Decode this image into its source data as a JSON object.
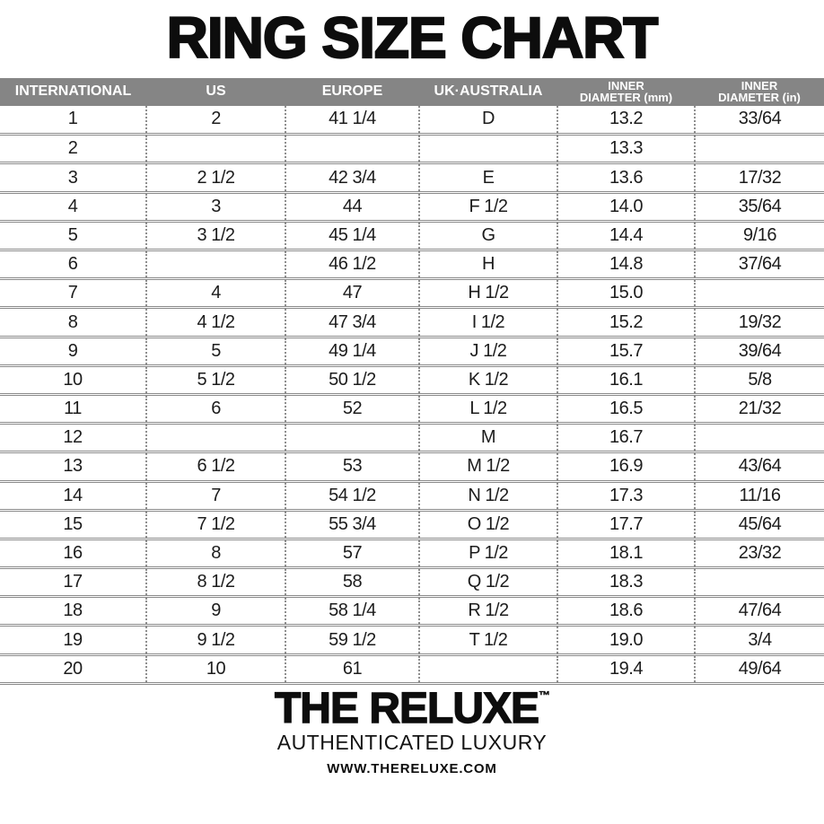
{
  "page": {
    "title": "RING SIZE CHART"
  },
  "colors": {
    "header_bg": "#858585",
    "header_text": "#ffffff",
    "separator_line": "#8a8a8a",
    "separator_dot": "#8f8f8f",
    "text": "#1c1c1c"
  },
  "table": {
    "columns": [
      {
        "line1": "INTERNATIONAL",
        "line2": ""
      },
      {
        "line1": "US",
        "line2": ""
      },
      {
        "line1": "EUROPE",
        "line2": ""
      },
      {
        "line1": "UK·AUSTRALIA",
        "line2": ""
      },
      {
        "line1": "INNER",
        "line2": "DIAMETER (mm)"
      },
      {
        "line1": "INNER",
        "line2": "DIAMETER (in)"
      }
    ],
    "rows": [
      [
        "1",
        "2",
        "41 1/4",
        "D",
        "13.2",
        "33/64"
      ],
      [
        "2",
        "",
        "",
        "",
        "13.3",
        ""
      ],
      [
        "3",
        "2 1/2",
        "42 3/4",
        "E",
        "13.6",
        "17/32"
      ],
      [
        "4",
        "3",
        "44",
        "F 1/2",
        "14.0",
        "35/64"
      ],
      [
        "5",
        "3 1/2",
        "45 1/4",
        "G",
        "14.4",
        "9/16"
      ],
      [
        "6",
        "",
        "46 1/2",
        "H",
        "14.8",
        "37/64"
      ],
      [
        "7",
        "4",
        "47",
        "H 1/2",
        "15.0",
        ""
      ],
      [
        "8",
        "4 1/2",
        "47 3/4",
        "I 1/2",
        "15.2",
        "19/32"
      ],
      [
        "9",
        "5",
        "49 1/4",
        "J 1/2",
        "15.7",
        "39/64"
      ],
      [
        "10",
        "5 1/2",
        "50 1/2",
        "K 1/2",
        "16.1",
        "5/8"
      ],
      [
        "11",
        "6",
        "52",
        "L 1/2",
        "16.5",
        "21/32"
      ],
      [
        "12",
        "",
        "",
        "M",
        "16.7",
        ""
      ],
      [
        "13",
        "6 1/2",
        "53",
        "M 1/2",
        "16.9",
        "43/64"
      ],
      [
        "14",
        "7",
        "54 1/2",
        "N 1/2",
        "17.3",
        "11/16"
      ],
      [
        "15",
        "7 1/2",
        "55 3/4",
        "O 1/2",
        "17.7",
        "45/64"
      ],
      [
        "16",
        "8",
        "57",
        "P 1/2",
        "18.1",
        "23/32"
      ],
      [
        "17",
        "8 1/2",
        "58",
        "Q 1/2",
        "18.3",
        ""
      ],
      [
        "18",
        "9",
        "58 1/4",
        "R 1/2",
        "18.6",
        "47/64"
      ],
      [
        "19",
        "9 1/2",
        "59 1/2",
        "T 1/2",
        "19.0",
        "3/4"
      ],
      [
        "20",
        "10",
        "61",
        "",
        "19.4",
        "49/64"
      ]
    ]
  },
  "footer": {
    "brand": "THE RELUXE",
    "trademark": "™",
    "tagline": "AUTHENTICATED LUXURY",
    "website": "WWW.THERELUXE.COM"
  }
}
